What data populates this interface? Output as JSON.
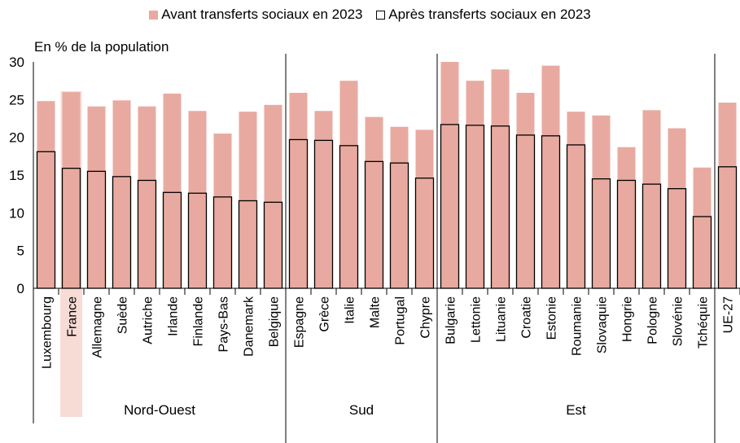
{
  "chart_data": {
    "type": "bar",
    "title": "",
    "ylabel": "En % de la population",
    "xlabel": "",
    "ylim": [
      0,
      30
    ],
    "yticks": [
      0,
      5,
      10,
      15,
      20,
      25,
      30
    ],
    "legend_position": "top",
    "grid": false,
    "highlight_category": "France",
    "categories": [
      "Luxembourg",
      "France",
      "Allemagne",
      "Suède",
      "Autriche",
      "Irlande",
      "Finlande",
      "Pays-Bas",
      "Danemark",
      "Belgique",
      "Espagne",
      "Grèce",
      "Italie",
      "Malte",
      "Portugal",
      "Chypre",
      "Bulgarie",
      "Lettonie",
      "Lituanie",
      "Croatie",
      "Estonie",
      "Roumanie",
      "Slovaquie",
      "Hongrie",
      "Pologne",
      "Slovénie",
      "Tchéquie",
      "UE-27"
    ],
    "groups": [
      {
        "label": "Nord-Ouest",
        "start": 0,
        "end": 9
      },
      {
        "label": "Sud",
        "start": 10,
        "end": 15
      },
      {
        "label": "Est",
        "start": 16,
        "end": 26
      },
      {
        "label": "",
        "start": 27,
        "end": 27
      }
    ],
    "series": [
      {
        "name": "Avant transferts sociaux en 2023",
        "values": [
          24.8,
          26.0,
          24.1,
          24.9,
          24.1,
          25.8,
          23.5,
          20.5,
          23.4,
          24.3,
          25.9,
          23.5,
          27.5,
          22.7,
          21.4,
          21.0,
          30.0,
          27.5,
          29.0,
          25.9,
          29.5,
          23.4,
          22.9,
          18.7,
          23.6,
          21.2,
          16.0,
          24.6
        ]
      },
      {
        "name": "Après transferts sociaux en 2023",
        "values": [
          18.1,
          15.9,
          15.5,
          14.8,
          14.3,
          12.7,
          12.6,
          12.1,
          11.6,
          11.4,
          19.7,
          19.6,
          18.9,
          16.8,
          16.6,
          14.6,
          21.7,
          21.6,
          21.5,
          20.3,
          20.2,
          19.0,
          14.5,
          14.3,
          13.8,
          13.2,
          9.5,
          16.1
        ]
      }
    ],
    "colors": {
      "before": "#e8aaa0",
      "after_fill": "#e8aaa0",
      "after_border": "#000000",
      "highlight": "#f7dcd6"
    }
  }
}
